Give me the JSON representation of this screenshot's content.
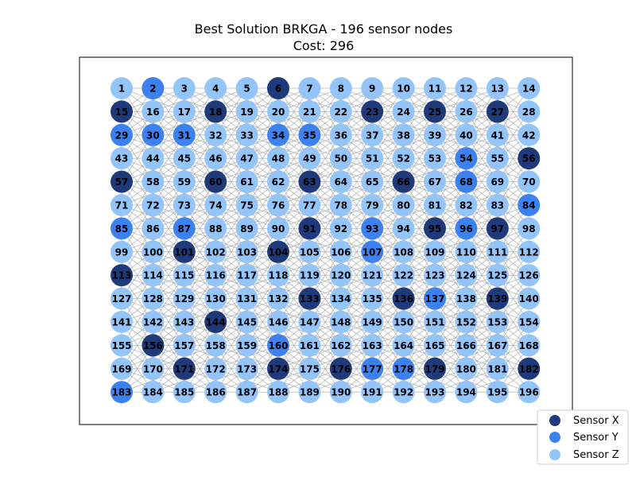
{
  "chart_data": {
    "type": "scatter",
    "title": "Best Solution BRKGA - 196 sensor nodes",
    "subtitle": "Cost: 296",
    "grid": {
      "rows": 14,
      "cols": 14
    },
    "node_ids": "1..196 (row-major, 14 per row)",
    "sensor_x": [
      6,
      15,
      18,
      23,
      25,
      27,
      56,
      57,
      60,
      63,
      66,
      91,
      95,
      97,
      101,
      104,
      113,
      133,
      136,
      139,
      144,
      156,
      171,
      174,
      176,
      179,
      182
    ],
    "sensor_y": [
      2,
      29,
      30,
      31,
      34,
      35,
      54,
      68,
      84,
      85,
      87,
      93,
      96,
      107,
      137,
      160,
      177,
      178,
      183
    ],
    "sensor_z": "all remaining nodes",
    "legend": [
      {
        "label": "Sensor X",
        "color": "#1f3a7a"
      },
      {
        "label": "Sensor Y",
        "color": "#3b82f0"
      },
      {
        "label": "Sensor Z",
        "color": "#93c5fa"
      }
    ],
    "legend_position": "lower-right"
  }
}
